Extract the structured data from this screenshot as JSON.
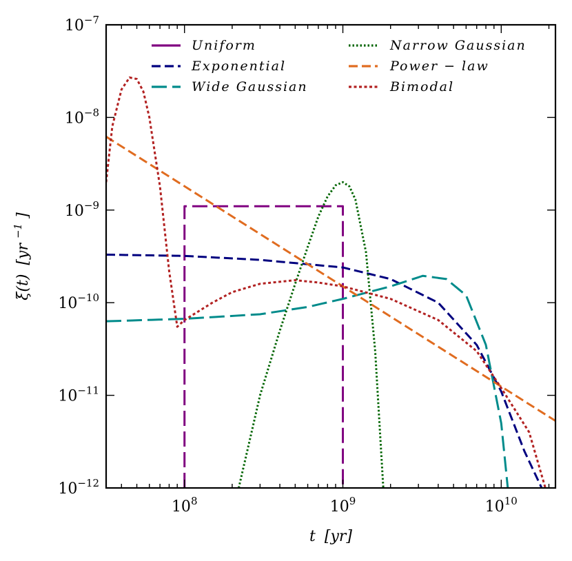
{
  "chart_data": {
    "type": "line",
    "title": "",
    "xlabel": "t [yr]",
    "ylabel": "ξ(t) [yr⁻¹]",
    "xscale": "log",
    "yscale": "log",
    "xlim": [
      32000000.0,
      22000000000.0
    ],
    "ylim": [
      1e-12,
      1e-07
    ],
    "x_ticks": [
      {
        "value": 100000000.0,
        "base": "10",
        "exp": "8"
      },
      {
        "value": 1000000000.0,
        "base": "10",
        "exp": "9"
      },
      {
        "value": 10000000000.0,
        "base": "10",
        "exp": "10"
      }
    ],
    "y_ticks": [
      {
        "value": 1e-12,
        "base": "10",
        "exp": "−12"
      },
      {
        "value": 1e-11,
        "base": "10",
        "exp": "−11"
      },
      {
        "value": 1e-10,
        "base": "10",
        "exp": "−10"
      },
      {
        "value": 1e-09,
        "base": "10",
        "exp": "−9"
      },
      {
        "value": 1e-08,
        "base": "10",
        "exp": "−8"
      },
      {
        "value": 1e-07,
        "base": "10",
        "exp": "−7"
      }
    ],
    "legend_position": "top",
    "series": [
      {
        "name": "Uniform",
        "color": "#800080",
        "dash": "long-dash",
        "x": [
          100000000.0,
          100000000.0,
          1000000000.0,
          1000000000.0
        ],
        "y": [
          1e-12,
          1.1e-09,
          1.1e-09,
          1e-12
        ]
      },
      {
        "name": "Exponential",
        "color": "#00007f",
        "dash": "dash",
        "x": [
          32000000.0,
          100000000.0,
          300000000.0,
          1000000000.0,
          2000000000.0,
          4000000000.0,
          7000000000.0,
          10000000000.0,
          14000000000.0,
          18000000000.0
        ],
        "y": [
          3.3e-10,
          3.2e-10,
          2.9e-10,
          2.4e-10,
          1.8e-10,
          1e-10,
          3.5e-11,
          1.1e-11,
          2.5e-12,
          1e-12
        ]
      },
      {
        "name": "Wide Gaussian",
        "color": "#008b8b",
        "dash": "long-dash",
        "x": [
          32000000.0,
          100000000.0,
          300000000.0,
          600000000.0,
          1000000000.0,
          2000000000.0,
          3200000000.0,
          4500000000.0,
          6000000000.0,
          8000000000.0,
          10000000000.0,
          11000000000.0
        ],
        "y": [
          6.3e-11,
          6.7e-11,
          7.5e-11,
          9e-11,
          1.1e-10,
          1.5e-10,
          1.95e-10,
          1.8e-10,
          1.2e-10,
          3.5e-11,
          5e-12,
          1e-12
        ]
      },
      {
        "name": "Narrow Gaussian",
        "color": "#006400",
        "dash": "dot",
        "x": [
          220000000.0,
          300000000.0,
          400000000.0,
          500000000.0,
          600000000.0,
          700000000.0,
          800000000.0,
          900000000.0,
          1000000000.0,
          1100000000.0,
          1200000000.0,
          1400000000.0,
          1600000000.0,
          1800000000.0
        ],
        "y": [
          1e-12,
          1e-11,
          5e-11,
          1.6e-10,
          4e-10,
          8.5e-10,
          1.4e-09,
          1.85e-09,
          2e-09,
          1.8e-09,
          1.3e-09,
          3.5e-10,
          3e-11,
          1e-12
        ]
      },
      {
        "name": "Power-law",
        "color": "#e06c20",
        "dash": "dash",
        "x": [
          32000000.0,
          22000000000.0
        ],
        "y": [
          6.2e-09,
          5.3e-12
        ]
      },
      {
        "name": "Bimodal",
        "color": "#b22222",
        "dash": "dot",
        "x": [
          32000000.0,
          35000000.0,
          40000000.0,
          45000000.0,
          50000000.0,
          55000000.0,
          60000000.0,
          70000000.0,
          80000000.0,
          90000000.0,
          100000000.0,
          150000000.0,
          200000000.0,
          300000000.0,
          500000000.0,
          700000000.0,
          1000000000.0,
          2000000000.0,
          4000000000.0,
          7000000000.0,
          10000000000.0,
          15000000000.0,
          19000000000.0
        ],
        "y": [
          2e-09,
          8e-09,
          2e-08,
          2.7e-08,
          2.6e-08,
          1.9e-08,
          1e-08,
          1.8e-09,
          2.2e-10,
          5.5e-11,
          6.5e-11,
          1e-10,
          1.3e-10,
          1.6e-10,
          1.75e-10,
          1.65e-10,
          1.5e-10,
          1.1e-10,
          6.5e-11,
          3e-11,
          1.2e-11,
          4e-12,
          1e-12
        ]
      }
    ]
  },
  "legend_labels": {
    "uniform": "Uniform",
    "exponential": "Exponential",
    "wide_gaussian": "Wide Gaussian",
    "narrow_gaussian": "Narrow Gaussian",
    "power_law": "Power − law",
    "bimodal": "Bimodal"
  },
  "axis_titles": {
    "x_main": "t",
    "x_unit": "[yr]",
    "y_main": "ξ(t)",
    "y_unit_open": "[yr",
    "y_unit_exp": "−1",
    "y_unit_close": "]"
  }
}
